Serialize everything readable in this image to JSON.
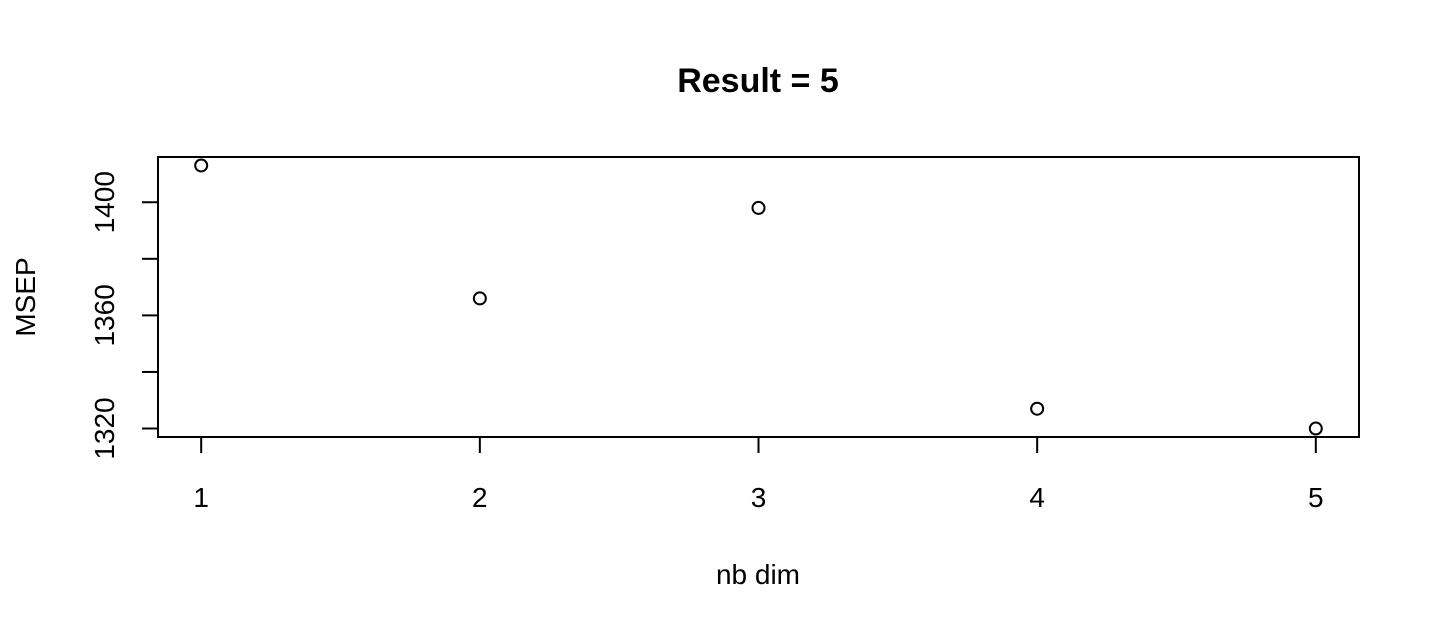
{
  "chart_data": {
    "type": "scatter",
    "title": "Result =  5",
    "xlabel": "nb dim",
    "ylabel": "MSEP",
    "x": [
      1,
      2,
      3,
      4,
      5
    ],
    "y": [
      1413,
      1366,
      1398,
      1327,
      1320
    ],
    "xlim": [
      0.845,
      5.155
    ],
    "ylim": [
      1317,
      1416
    ],
    "xticks": [
      1,
      2,
      3,
      4,
      5
    ],
    "yticks": [
      1320,
      1360,
      1400
    ],
    "xtick_labels": [
      "1",
      "2",
      "3",
      "4",
      "5"
    ],
    "ytick_labels": [
      "1320",
      "1360",
      "1400"
    ],
    "marker": "open-circle",
    "grid": false,
    "colors": {
      "foreground": "#000000",
      "background": "#ffffff"
    }
  }
}
